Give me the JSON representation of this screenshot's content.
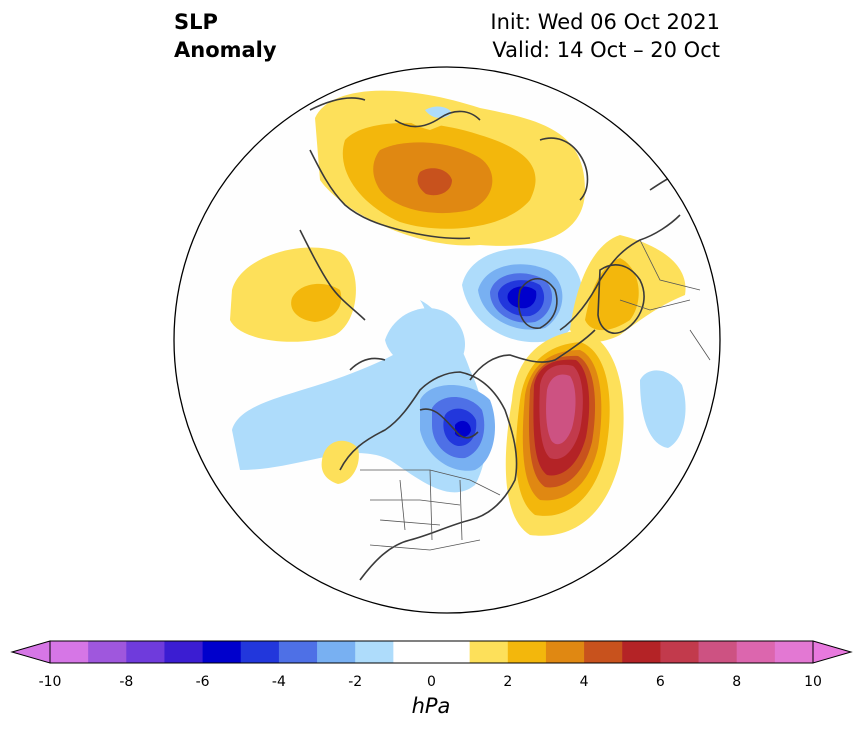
{
  "title": {
    "left_line1": "SLP",
    "left_line2": "Anomaly",
    "right_line1": "Init: Wed 06 Oct 2021",
    "right_line2": "Valid: 14 Oct – 20 Oct"
  },
  "colorbar": {
    "unit": "hPa",
    "ticks": [
      "-10",
      "-8",
      "-6",
      "-4",
      "-2",
      "0",
      "2",
      "4",
      "6",
      "8",
      "10"
    ],
    "range": [
      -10,
      10
    ],
    "extend": "both",
    "colors": [
      "#d676e6",
      "#9f57dd",
      "#6f3bdc",
      "#3b1dd2",
      "#0000cc",
      "#2237dc",
      "#4e70e6",
      "#78b0f2",
      "#aedcfb",
      "#ffffff",
      "#ffffff",
      "#fde05a",
      "#f3b70c",
      "#e08812",
      "#c8521d",
      "#b42326",
      "#c23a4c",
      "#cd5282",
      "#dc66ae",
      "#e378d3"
    ],
    "over_color": "#e879de",
    "under_color": "#d676e6"
  },
  "map": {
    "projection": "north-polar-stereographic",
    "features": [
      "anomaly-shading",
      "coastlines",
      "country-borders",
      "state-borders"
    ]
  }
}
